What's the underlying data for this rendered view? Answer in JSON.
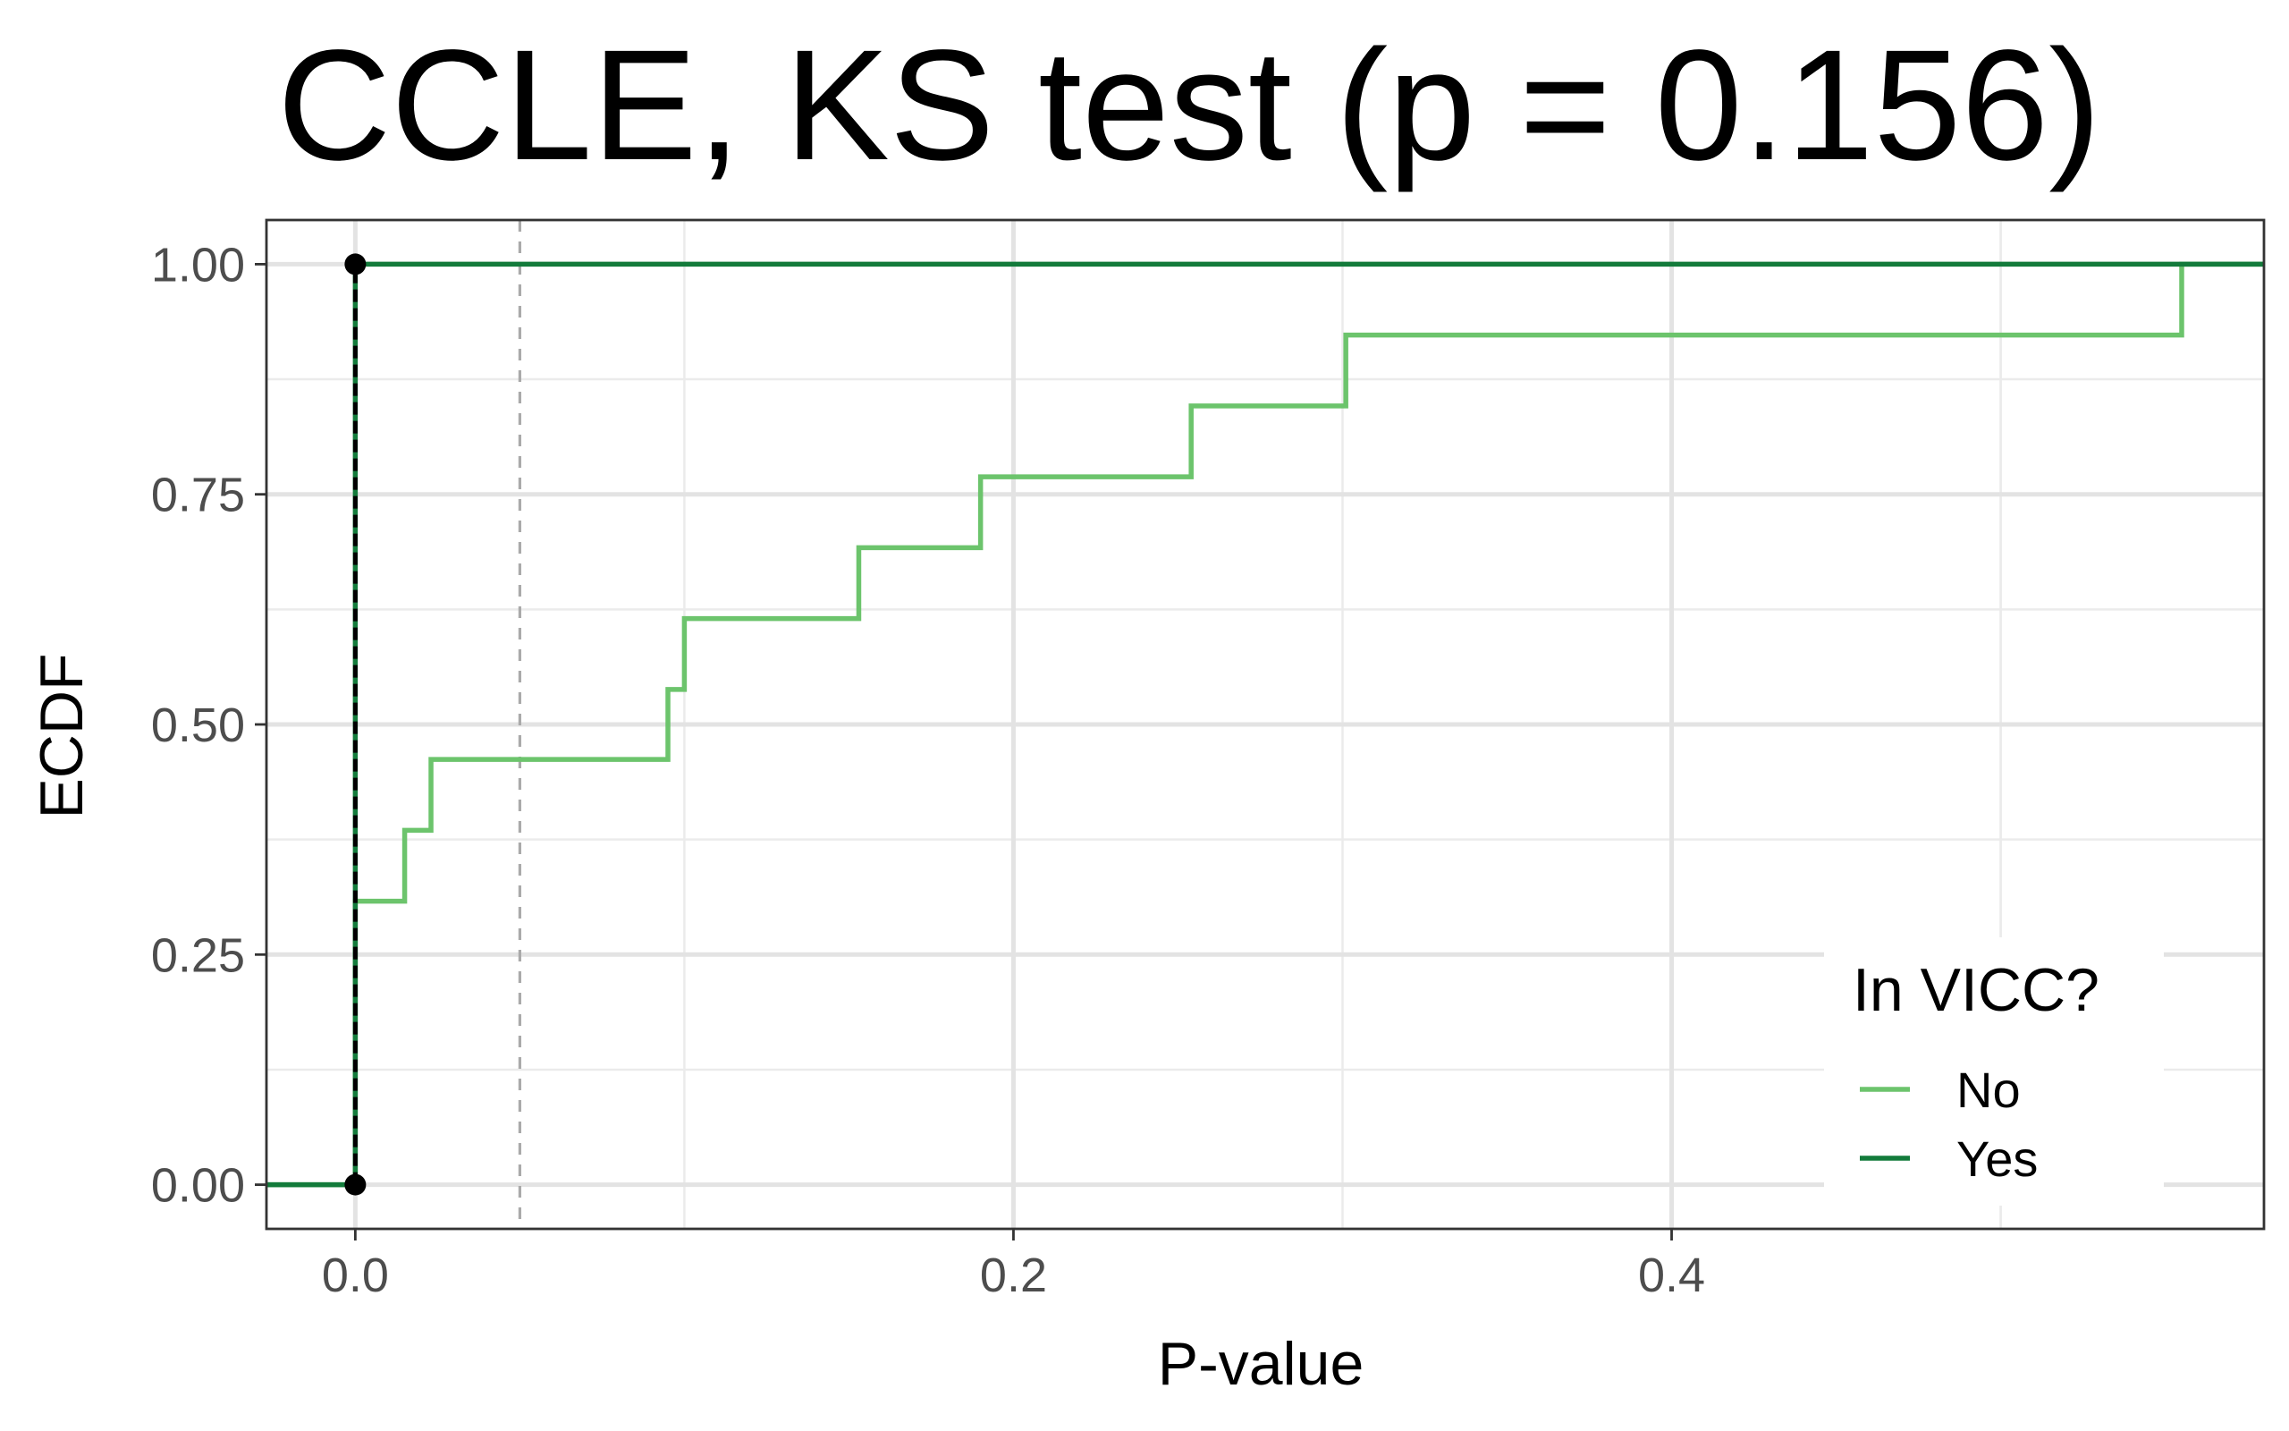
{
  "chart_data": {
    "type": "line",
    "subtype": "ecdf-step",
    "title": "CCLE, KS test (p = 0.156)",
    "xlabel": "P-value",
    "ylabel": "ECDF",
    "xlim": [
      -0.027,
      0.58
    ],
    "ylim": [
      -0.048,
      1.048
    ],
    "x_ticks": [
      0.0,
      0.2,
      0.4
    ],
    "x_tick_labels": [
      "0.0",
      "0.2",
      "0.4"
    ],
    "y_ticks": [
      0.0,
      0.25,
      0.5,
      0.75,
      1.0
    ],
    "y_tick_labels": [
      "0.00",
      "0.25",
      "0.50",
      "0.75",
      "1.00"
    ],
    "grid": true,
    "reference_line": {
      "x": 0.05,
      "style": "dashed",
      "color": "#aaaaaa"
    },
    "legend": {
      "title": "In VICC?",
      "position": "bottom-right"
    },
    "series": [
      {
        "name": "No",
        "color": "#6cc46c",
        "step_x": [
          0.0,
          0.015,
          0.023,
          0.095,
          0.1,
          0.153,
          0.19,
          0.254,
          0.301,
          0.555
        ],
        "step_y": [
          0.308,
          0.385,
          0.462,
          0.538,
          0.615,
          0.692,
          0.769,
          0.846,
          0.923,
          1.0
        ]
      },
      {
        "name": "Yes",
        "color": "#137b3b",
        "step_x": [
          0.0
        ],
        "step_y": [
          1.0
        ]
      }
    ],
    "markers": [
      {
        "x": 0.0,
        "y": 0.0
      },
      {
        "x": 0.0,
        "y": 1.0
      }
    ]
  }
}
